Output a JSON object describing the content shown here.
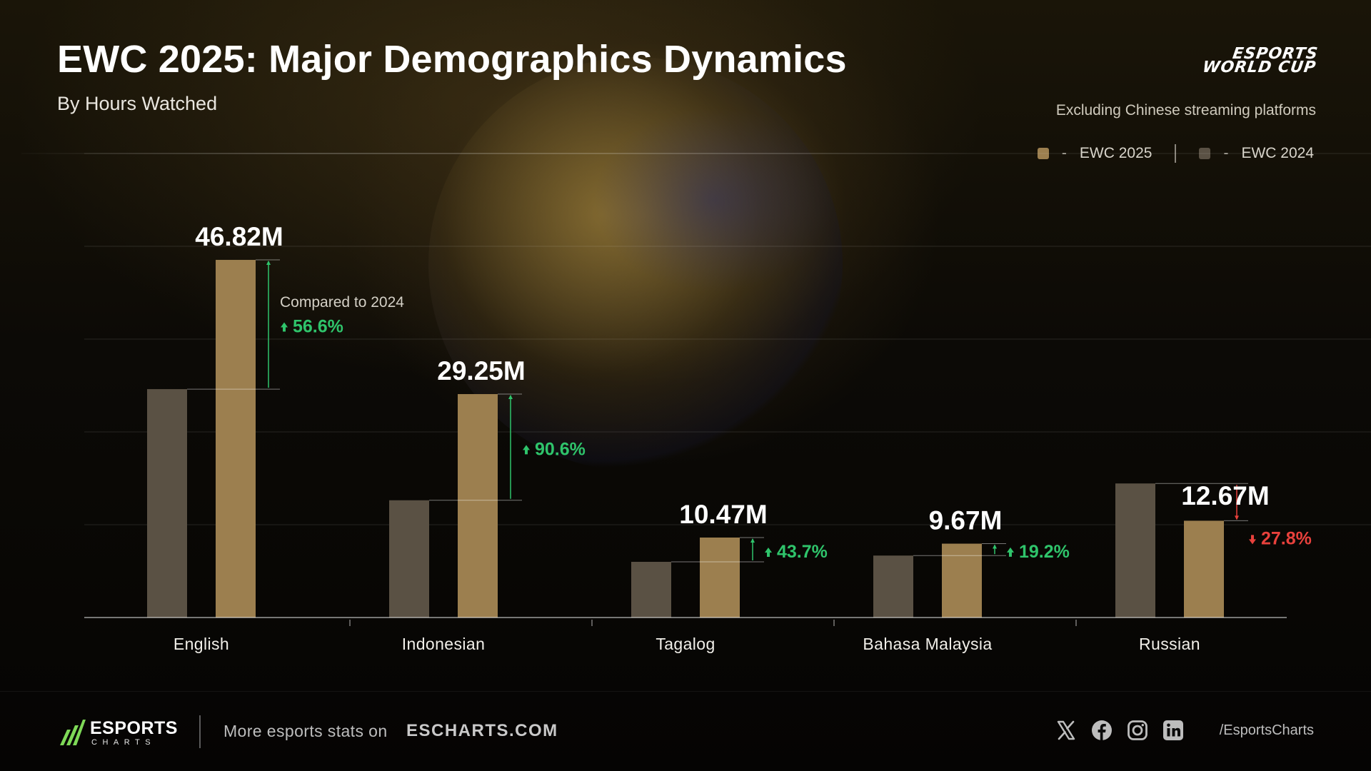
{
  "header": {
    "title": "EWC 2025: Major Demographics Dynamics",
    "subtitle": "By Hours Watched",
    "brand_logo_line1": "ESPORTS",
    "brand_logo_line2": "WORLD CUP",
    "note": "Excluding Chinese streaming platforms"
  },
  "legend": {
    "items": [
      {
        "label": "EWC 2025",
        "separator": "-",
        "color": "#9c7f4f"
      },
      {
        "label": "EWC 2024",
        "separator": "-",
        "color": "#5a5144"
      }
    ]
  },
  "chart_data": {
    "type": "bar",
    "title": "EWC 2025: Major Demographics Dynamics",
    "subtitle": "By Hours Watched",
    "categories": [
      "English",
      "Indonesian",
      "Tagalog",
      "Bahasa Malaysia",
      "Russian"
    ],
    "series": [
      {
        "name": "EWC 2024",
        "color": "#5a5144",
        "values": [
          29.9,
          15.35,
          7.29,
          8.11,
          17.55
        ]
      },
      {
        "name": "EWC 2025",
        "color": "#9c7f4f",
        "values": [
          46.82,
          29.25,
          10.47,
          9.67,
          12.67
        ]
      }
    ],
    "value_labels": [
      "46.82M",
      "29.25M",
      "10.47M",
      "9.67M",
      "12.67M"
    ],
    "changes": [
      {
        "text": "56.6%",
        "direction": "up"
      },
      {
        "text": "90.6%",
        "direction": "up"
      },
      {
        "text": "43.7%",
        "direction": "up"
      },
      {
        "text": "19.2%",
        "direction": "up"
      },
      {
        "text": "27.8%",
        "direction": "down"
      }
    ],
    "annotation": "Compared to 2024",
    "ylim": [
      0,
      50
    ],
    "unit": "M",
    "grid": true,
    "legend_position": "top-right",
    "colors": {
      "up": "#2fc46b",
      "down": "#e8413c"
    }
  },
  "footer": {
    "logo_word": "ESPORTS",
    "logo_sub": "CHARTS",
    "more_text": "More esports stats on",
    "site": "ESCHARTS.COM",
    "social_icons": [
      "x-icon",
      "facebook-icon",
      "instagram-icon",
      "linkedin-icon"
    ],
    "handle": "/EsportsCharts"
  }
}
